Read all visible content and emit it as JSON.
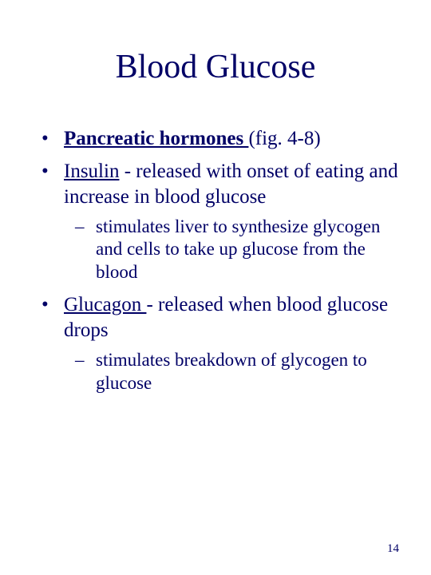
{
  "colors": {
    "text": "#000066",
    "background": "#ffffff"
  },
  "typography": {
    "family": "Times New Roman",
    "title_size_pt": 42,
    "bullet_size_pt": 25,
    "sub_size_pt": 23,
    "pagenum_size_pt": 15
  },
  "title": "Blood Glucose",
  "bullets": [
    {
      "lead": "Pancreatic hormones ",
      "rest": "(fig. 4-8)",
      "lead_bold": true,
      "sub": []
    },
    {
      "lead": "Insulin",
      "rest": " - released with onset of eating and increase in blood glucose",
      "lead_bold": false,
      "sub": [
        "stimulates liver to synthesize glycogen and cells to take up glucose from the blood"
      ]
    },
    {
      "lead": "Glucagon ",
      "rest": "- released when blood glucose drops",
      "lead_bold": false,
      "sub": [
        "stimulates breakdown of glycogen to glucose"
      ]
    }
  ],
  "page_number": "14"
}
